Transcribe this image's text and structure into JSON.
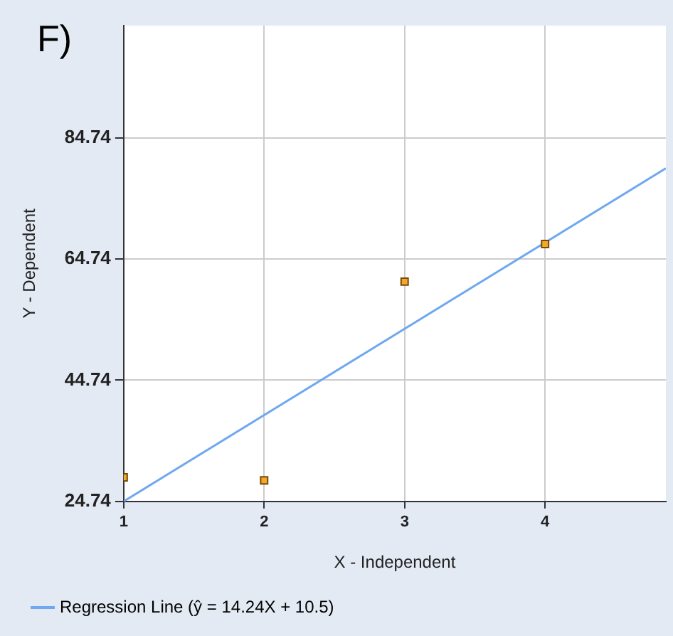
{
  "chart_data": {
    "type": "scatter",
    "title": "F)",
    "xlabel": "X - Independent",
    "ylabel": "Y - Dependent",
    "xlim": [
      1,
      4.86
    ],
    "xticks": [
      1,
      2,
      3,
      4
    ],
    "ylim": [
      24.74,
      103.24
    ],
    "yticks": [
      24.74,
      44.74,
      64.74,
      84.74
    ],
    "grid": true,
    "legend": "bottom",
    "series": [
      {
        "color": "#f0a830",
        "marker": "square",
        "x": [
          1,
          2,
          3,
          4
        ],
        "values": [
          28.7,
          28.2,
          61.0,
          67.2
        ]
      },
      {
        "type": "line",
        "name": "Regression Line (ŷ = 14.24X + 10.5)",
        "color": "#6fa8f0",
        "marker": "none",
        "x": [
          1,
          4.86
        ],
        "values": [
          24.74,
          79.7
        ]
      }
    ]
  }
}
